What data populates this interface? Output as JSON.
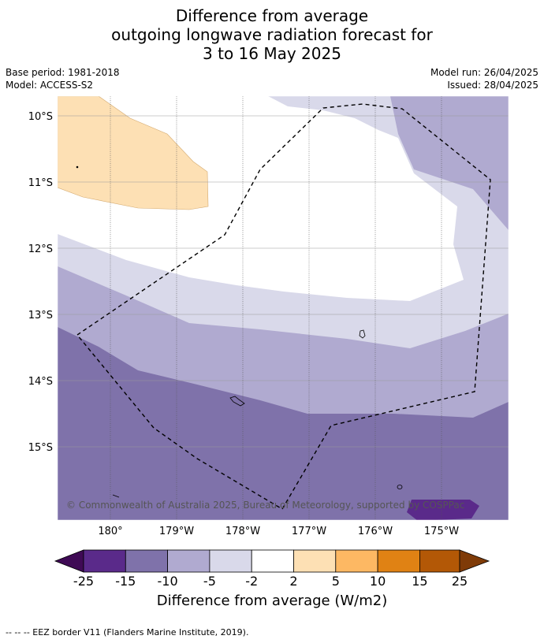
{
  "title": {
    "line1": "Difference from average",
    "line2": "outgoing longwave radiation forecast for",
    "line3": "3 to 16 May 2025"
  },
  "meta": {
    "base_period": "Base period: 1981-2018",
    "model": "Model: ACCESS-S2",
    "model_run": "Model run: 26/04/2025",
    "issued": "Issued: 28/04/2025"
  },
  "map": {
    "lat_labels": [
      "10°S",
      "11°S",
      "12°S",
      "13°S",
      "14°S",
      "15°S"
    ],
    "lon_labels": [
      "180°",
      "179°W",
      "178°W",
      "177°W",
      "176°W",
      "175°W"
    ],
    "copyright": "© Commonwealth of Australia 2025, Bureau of Meteorology, supported by COSPPac",
    "colors": {
      "lt_-25": "#3f0a55",
      "-25_-15": "#5a2a8a",
      "-15_-10": "#7f72aa",
      "-10_-5": "#b0aad0",
      "-5_-2": "#d9d9ea",
      "-2_2": "#ffffff",
      "2_5": "#fde0b4",
      "5_10": "#fdb863",
      "10_15": "#e08214",
      "15_25": "#b35806",
      "gt_25": "#7f3b08"
    }
  },
  "colorbar": {
    "ticks": [
      "-25",
      "-15",
      "-10",
      "-5",
      "-2",
      "2",
      "5",
      "10",
      "15",
      "25"
    ],
    "title": "Difference from average (W/m2)"
  },
  "footer": {
    "text": "--  --  -- EEZ border V11 (Flanders Marine Institute, 2019)."
  }
}
